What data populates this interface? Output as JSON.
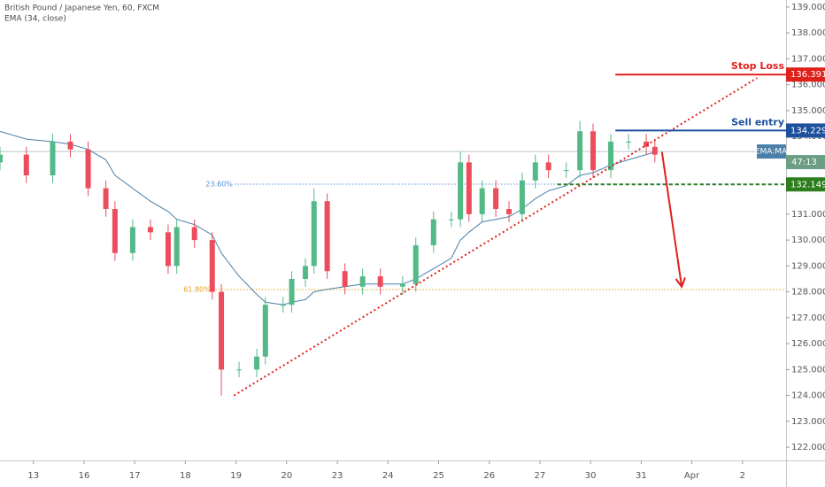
{
  "chart_data": {
    "type": "candlestick",
    "title": "British Pound / Japanese Yen, 60, FXCM",
    "subtitle": "EMA (34, close)",
    "x": [
      -0.66,
      -0.14,
      0.38,
      0.73,
      1.08,
      1.43,
      1.61,
      1.96,
      2.31,
      2.66,
      2.83,
      3.18,
      3.53,
      3.71,
      4.06,
      4.41,
      4.58,
      4.93,
      5.1,
      5.37,
      5.54,
      5.8,
      6.15,
      6.5,
      6.85,
      7.29,
      7.55,
      7.9,
      8.25,
      8.43,
      8.6,
      8.86,
      9.13,
      9.39,
      9.65,
      9.91,
      10.17,
      10.52,
      10.79,
      11.05,
      11.4,
      11.75,
      12.1,
      12.27
    ],
    "open": [
      133.0,
      133.3,
      132.5,
      133.8,
      133.5,
      132.0,
      131.2,
      129.5,
      130.5,
      130.3,
      129.0,
      130.5,
      130.0,
      128.0,
      125.0,
      125.0,
      125.5,
      127.5,
      127.5,
      128.5,
      129.0,
      131.5,
      128.8,
      128.2,
      128.6,
      128.2,
      128.3,
      129.8,
      130.8,
      130.8,
      133.0,
      131.0,
      132.0,
      131.2,
      131.0,
      132.3,
      133.0,
      132.7,
      132.7,
      134.2,
      132.7,
      133.8,
      133.8,
      133.6
    ],
    "high": [
      133.6,
      133.6,
      134.1,
      134.1,
      133.8,
      132.3,
      131.5,
      130.8,
      130.8,
      130.6,
      130.8,
      130.8,
      130.3,
      128.3,
      125.3,
      125.8,
      127.8,
      127.8,
      128.8,
      129.3,
      132.0,
      131.8,
      129.1,
      128.9,
      128.9,
      128.6,
      130.1,
      131.1,
      131.1,
      133.4,
      133.3,
      132.3,
      132.3,
      131.5,
      132.6,
      133.3,
      133.3,
      133.0,
      134.6,
      134.5,
      134.1,
      134.1,
      134.1,
      133.9
    ],
    "low": [
      132.7,
      132.2,
      132.2,
      133.2,
      131.7,
      130.9,
      129.2,
      129.2,
      130.0,
      128.7,
      128.7,
      129.7,
      127.7,
      124.0,
      124.7,
      124.7,
      125.2,
      127.2,
      127.2,
      128.2,
      128.7,
      128.5,
      127.9,
      127.9,
      127.9,
      127.9,
      128.0,
      129.5,
      130.5,
      130.5,
      130.7,
      130.7,
      130.9,
      130.7,
      130.7,
      132.0,
      132.4,
      132.4,
      132.4,
      132.4,
      132.4,
      133.5,
      133.3,
      133.0
    ],
    "close": [
      133.3,
      132.5,
      133.8,
      133.5,
      132.0,
      131.2,
      129.5,
      130.5,
      130.3,
      129.0,
      130.5,
      130.0,
      128.0,
      125.0,
      125.0,
      125.5,
      127.5,
      127.5,
      128.5,
      129.0,
      131.5,
      128.8,
      128.2,
      128.6,
      128.2,
      128.3,
      129.8,
      130.8,
      130.8,
      133.0,
      131.0,
      132.0,
      131.2,
      131.0,
      132.3,
      133.0,
      132.7,
      132.7,
      134.2,
      132.7,
      133.8,
      133.8,
      133.6,
      133.3
    ],
    "up_color": "#53b987",
    "down_color": "#eb4d5c",
    "ema": {
      "name": "EMA:MA",
      "color": "#4a7fa8",
      "values": [
        134.2,
        133.9,
        133.8,
        133.7,
        133.5,
        133.1,
        132.5,
        132.0,
        131.5,
        131.1,
        130.8,
        130.6,
        130.2,
        129.5,
        128.6,
        127.9,
        127.6,
        127.5,
        127.6,
        127.7,
        128.0,
        128.1,
        128.2,
        128.3,
        128.3,
        128.3,
        128.5,
        128.9,
        129.3,
        130.0,
        130.3,
        130.7,
        130.8,
        130.9,
        131.2,
        131.6,
        131.9,
        132.1,
        132.5,
        132.6,
        132.9,
        133.1,
        133.3,
        133.4
      ]
    },
    "current_price": 133.42,
    "countdown": "47:13",
    "countdown_color": "#6b9e84",
    "xlim": [
      -0.66,
      14.86
    ],
    "ylim": [
      121.49,
      139.27
    ],
    "xticks": [
      {
        "value": 0,
        "label": "13"
      },
      {
        "value": 1,
        "label": "16"
      },
      {
        "value": 2,
        "label": "17"
      },
      {
        "value": 3,
        "label": "18"
      },
      {
        "value": 4,
        "label": "19"
      },
      {
        "value": 5,
        "label": "20"
      },
      {
        "value": 6,
        "label": "23"
      },
      {
        "value": 7,
        "label": "24"
      },
      {
        "value": 8,
        "label": "25"
      },
      {
        "value": 9,
        "label": "26"
      },
      {
        "value": 10,
        "label": "27"
      },
      {
        "value": 11,
        "label": "30"
      },
      {
        "value": 12,
        "label": "31"
      },
      {
        "value": 13,
        "label": "Apr"
      },
      {
        "value": 14,
        "label": "2"
      }
    ],
    "yticks": [
      {
        "value": 122,
        "label": "122.000"
      },
      {
        "value": 123,
        "label": "123.000"
      },
      {
        "value": 124,
        "label": "124.000"
      },
      {
        "value": 125,
        "label": "125.000"
      },
      {
        "value": 126,
        "label": "126.000"
      },
      {
        "value": 127,
        "label": "127.000"
      },
      {
        "value": 128,
        "label": "128.000"
      },
      {
        "value": 129,
        "label": "129.000"
      },
      {
        "value": 130,
        "label": "130.000"
      },
      {
        "value": 131,
        "label": "131.000"
      },
      {
        "value": 132,
        "label": "132.000"
      },
      {
        "value": 133,
        "label": "133.000"
      },
      {
        "value": 134,
        "label": "134.000"
      },
      {
        "value": 135,
        "label": "135.000"
      },
      {
        "value": 136,
        "label": "136.000"
      },
      {
        "value": 137,
        "label": "137.000"
      },
      {
        "value": 138,
        "label": "138.000"
      },
      {
        "value": 139,
        "label": "139.000"
      }
    ],
    "levels": [
      {
        "label": "Stop Loss",
        "value": 136.391,
        "color": "#e0201b",
        "start": 11.49
      },
      {
        "label": "Sell entry",
        "value": 134.229,
        "color": "#1c4f9c",
        "start": 11.49
      },
      {
        "value": 132.149,
        "color": "#2e7d1f",
        "start": 10.35,
        "dashed": true
      }
    ],
    "fib_levels": [
      {
        "label": "23.60%",
        "value": 132.16,
        "color": "#4a8fd8",
        "start": 3.97
      },
      {
        "label": "61.80%",
        "value": 128.09,
        "color": "#e3a21a",
        "start": 3.53
      }
    ],
    "trendline": [
      [
        3.96,
        124.0
      ],
      [
        14.29,
        136.26
      ]
    ],
    "trendline_color": "#e0201b",
    "arrow": [
      [
        12.41,
        133.4
      ],
      [
        12.8,
        128.2
      ]
    ],
    "arrow_color": "#e0201b"
  }
}
